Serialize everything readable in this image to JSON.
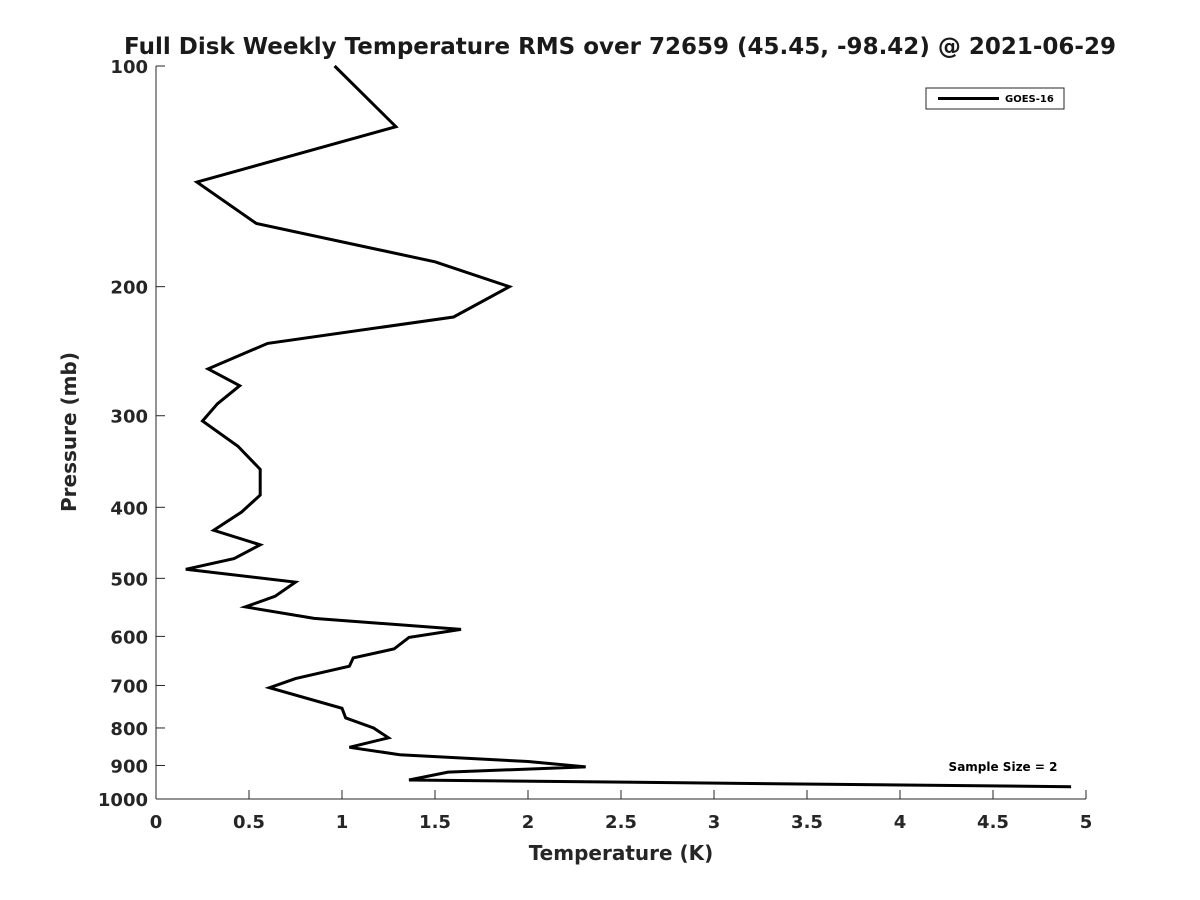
{
  "chart_data": {
    "type": "line",
    "title": "Full Disk Weekly Temperature RMS over 72659 (45.45, -98.42) @ 2021-06-29",
    "xlabel": "Temperature (K)",
    "ylabel": "Pressure (mb)",
    "xlim": [
      0,
      5
    ],
    "ylim": [
      100,
      1000
    ],
    "yscale": "log",
    "yreversed": true,
    "xticks": [
      "0",
      "0.5",
      "1",
      "1.5",
      "2",
      "2.5",
      "3",
      "3.5",
      "4",
      "4.5",
      "5"
    ],
    "yticks": [
      "100",
      "200",
      "300",
      "400",
      "500",
      "600",
      "700",
      "800",
      "900",
      "1000"
    ],
    "grid": false,
    "legend_position": "top-right",
    "annotation": "Sample Size = 2",
    "series": [
      {
        "name": "GOES-16",
        "color": "#000000",
        "x": [
          0.96,
          1.29,
          0.22,
          0.54,
          1.5,
          1.9,
          1.6,
          0.6,
          0.28,
          0.45,
          0.33,
          0.25,
          0.44,
          0.56,
          0.56,
          0.46,
          0.31,
          0.56,
          0.42,
          0.16,
          0.75,
          0.64,
          0.48,
          0.85,
          1.64,
          1.36,
          1.28,
          1.06,
          1.04,
          0.75,
          0.61,
          1.0,
          1.02,
          1.17,
          1.25,
          1.04,
          1.31,
          2.0,
          2.31,
          1.57,
          1.36,
          4.92
        ],
        "y": [
          100,
          121,
          144,
          164,
          185,
          200,
          220,
          239,
          259,
          273,
          289,
          305,
          330,
          355,
          385,
          406,
          430,
          450,
          470,
          486,
          506,
          529,
          547,
          567,
          587,
          602,
          624,
          642,
          659,
          685,
          705,
          752,
          775,
          800,
          825,
          850,
          870,
          889,
          904,
          919,
          942,
          962
        ]
      }
    ]
  }
}
